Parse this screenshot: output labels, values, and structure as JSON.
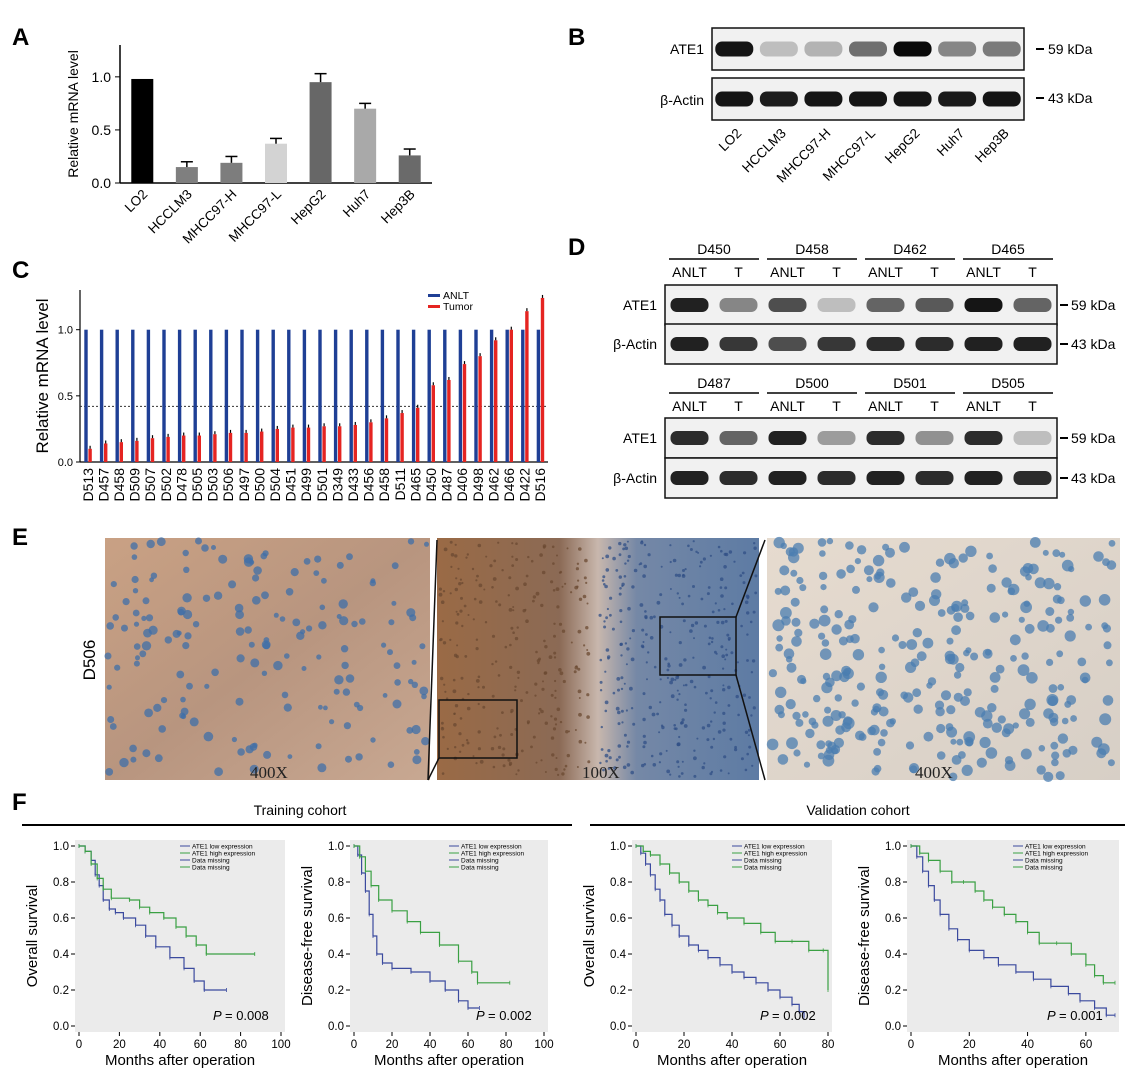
{
  "panel_letters": [
    "A",
    "B",
    "C",
    "D",
    "E",
    "F"
  ],
  "colors": {
    "black": "#000000",
    "anlt": "#1f3f95",
    "tumor": "#e52421",
    "km_low": "#3b4a9e",
    "km_high": "#3aa043",
    "plot_bg": "#ebebeb"
  },
  "chart_data": [
    {
      "id": "A",
      "type": "bar",
      "ylabel": "Relative mRNA level",
      "ylim": [
        0,
        1.3
      ],
      "ticks": [
        "0.0",
        "0.5",
        "1.0"
      ],
      "tick_values": [
        0,
        0.5,
        1.0
      ],
      "categories": [
        "LO2",
        "HCCLM3",
        "MHCC97-H",
        "MHCC97-L",
        "HepG2",
        "Huh7",
        "Hep3B"
      ],
      "values": [
        0.98,
        0.15,
        0.19,
        0.37,
        0.95,
        0.7,
        0.26
      ],
      "errors": [
        0,
        0.05,
        0.06,
        0.05,
        0.08,
        0.05,
        0.06
      ],
      "bar_colors": [
        "#000000",
        "#7f7f7f",
        "#7d7d7d",
        "#d3d3d3",
        "#676767",
        "#a9a9a9",
        "#6a6a6a"
      ]
    },
    {
      "id": "C",
      "type": "bar",
      "ylabel": "Relative mRNA level",
      "ylim": [
        0,
        1.3
      ],
      "ticks": [
        "0.0",
        "0.5",
        "1.0"
      ],
      "tick_values": [
        0,
        0.5,
        1.0
      ],
      "threshold": 0.42,
      "legend": [
        "ANLT",
        "Tumor"
      ],
      "categories": [
        "D513",
        "D457",
        "D458",
        "D509",
        "D507",
        "D502",
        "D478",
        "D505",
        "D503",
        "D506",
        "D497",
        "D500",
        "D504",
        "D451",
        "D499",
        "D501",
        "D349",
        "D433",
        "D456",
        "D458",
        "D511",
        "D465",
        "D450",
        "D487",
        "D406",
        "D498",
        "D462",
        "D466",
        "D422",
        "D516"
      ],
      "series": [
        {
          "name": "ANLT",
          "values": [
            1,
            1,
            1,
            1,
            1,
            1,
            1,
            1,
            1,
            1,
            1,
            1,
            1,
            1,
            1,
            1,
            1,
            1,
            1,
            1,
            1,
            1,
            1,
            1,
            1,
            1,
            1,
            1,
            1,
            1
          ]
        },
        {
          "name": "Tumor",
          "values": [
            0.1,
            0.14,
            0.15,
            0.16,
            0.18,
            0.19,
            0.2,
            0.2,
            0.21,
            0.22,
            0.22,
            0.23,
            0.25,
            0.26,
            0.26,
            0.27,
            0.27,
            0.28,
            0.3,
            0.33,
            0.37,
            0.41,
            0.58,
            0.62,
            0.74,
            0.8,
            0.92,
            1.0,
            1.14,
            1.24
          ]
        }
      ]
    }
  ],
  "blot_B": {
    "row_labels": [
      "ATE1",
      "β-Actin"
    ],
    "sizes": [
      "59 kDa",
      "43 kDa"
    ],
    "lanes": [
      "LO2",
      "HCCLM3",
      "MHCC97-H",
      "MHCC97-L",
      "HepG2",
      "Huh7",
      "Hep3B"
    ],
    "ate1_intensity": [
      0.95,
      0.2,
      0.25,
      0.55,
      1.0,
      0.45,
      0.5
    ],
    "actin_intensity": [
      0.95,
      0.92,
      0.95,
      0.95,
      0.95,
      0.93,
      0.95
    ]
  },
  "blot_D": {
    "row_labels": [
      "ATE1",
      "β-Actin"
    ],
    "sizes": [
      "59 kDa",
      "43 kDa"
    ],
    "lane_label_anlt": "ANLT",
    "lane_label_t": "T",
    "groups_top": [
      "D450",
      "D458",
      "D462",
      "D465"
    ],
    "groups_bottom": [
      "D487",
      "D500",
      "D501",
      "D505"
    ],
    "ate1_top": [
      0.9,
      0.45,
      0.7,
      0.2,
      0.6,
      0.65,
      0.95,
      0.6
    ],
    "ate1_bottom": [
      0.85,
      0.6,
      0.9,
      0.35,
      0.85,
      0.4,
      0.85,
      0.2
    ],
    "actin_top": [
      0.9,
      0.8,
      0.7,
      0.8,
      0.85,
      0.85,
      0.9,
      0.9
    ],
    "actin_bottom": [
      0.9,
      0.85,
      0.9,
      0.85,
      0.9,
      0.85,
      0.9,
      0.85
    ]
  },
  "ihc": {
    "sample_label": "D506",
    "magnifications": [
      "400X",
      "100X",
      "400X"
    ]
  },
  "km": {
    "cohort_titles": [
      "Training cohort",
      "Validation cohort"
    ],
    "xlabel": "Months after operation",
    "legend": [
      "ATE1 low expression",
      "ATE1 high expression",
      "Data missing",
      "Data missing"
    ],
    "yticks": [
      "0.0",
      "0.2",
      "0.4",
      "0.6",
      "0.8",
      "1.0"
    ],
    "plots": [
      {
        "ylabel": "Overall survival",
        "p_label": "P",
        "p_value": "= 0.008",
        "xticks": [
          "0",
          "20",
          "40",
          "60",
          "80",
          "100"
        ],
        "xmax": 100,
        "low": [
          [
            0,
            1
          ],
          [
            3,
            0.97
          ],
          [
            6,
            0.92
          ],
          [
            8,
            0.84
          ],
          [
            10,
            0.78
          ],
          [
            12,
            0.7
          ],
          [
            15,
            0.65
          ],
          [
            18,
            0.63
          ],
          [
            22,
            0.6
          ],
          [
            28,
            0.56
          ],
          [
            33,
            0.5
          ],
          [
            38,
            0.44
          ],
          [
            45,
            0.38
          ],
          [
            52,
            0.32
          ],
          [
            57,
            0.25
          ],
          [
            62,
            0.2
          ],
          [
            73,
            0.2
          ]
        ],
        "high": [
          [
            0,
            1
          ],
          [
            3,
            0.97
          ],
          [
            6,
            0.9
          ],
          [
            9,
            0.82
          ],
          [
            12,
            0.76
          ],
          [
            16,
            0.71
          ],
          [
            25,
            0.7
          ],
          [
            30,
            0.66
          ],
          [
            35,
            0.63
          ],
          [
            42,
            0.6
          ],
          [
            48,
            0.55
          ],
          [
            53,
            0.5
          ],
          [
            58,
            0.45
          ],
          [
            63,
            0.4
          ],
          [
            87,
            0.4
          ]
        ]
      },
      {
        "ylabel": "Disease-free survival",
        "p_label": "P",
        "p_value": "= 0.002",
        "xticks": [
          "0",
          "20",
          "40",
          "60",
          "80",
          "100"
        ],
        "xmax": 100,
        "low": [
          [
            0,
            1
          ],
          [
            2,
            0.95
          ],
          [
            4,
            0.85
          ],
          [
            6,
            0.75
          ],
          [
            8,
            0.62
          ],
          [
            10,
            0.5
          ],
          [
            12,
            0.4
          ],
          [
            15,
            0.35
          ],
          [
            20,
            0.32
          ],
          [
            30,
            0.3
          ],
          [
            40,
            0.25
          ],
          [
            48,
            0.2
          ],
          [
            55,
            0.14
          ],
          [
            60,
            0.1
          ],
          [
            66,
            0.1
          ]
        ],
        "high": [
          [
            0,
            1
          ],
          [
            3,
            0.94
          ],
          [
            6,
            0.86
          ],
          [
            9,
            0.78
          ],
          [
            13,
            0.7
          ],
          [
            20,
            0.64
          ],
          [
            28,
            0.58
          ],
          [
            35,
            0.52
          ],
          [
            45,
            0.45
          ],
          [
            55,
            0.36
          ],
          [
            62,
            0.3
          ],
          [
            65,
            0.24
          ],
          [
            82,
            0.24
          ]
        ]
      },
      {
        "ylabel": "Overall survival",
        "p_label": "P",
        "p_value": "= 0.002",
        "xticks": [
          "0",
          "20",
          "40",
          "60",
          "80"
        ],
        "xmax": 80,
        "low": [
          [
            0,
            1
          ],
          [
            2,
            0.96
          ],
          [
            4,
            0.9
          ],
          [
            6,
            0.84
          ],
          [
            8,
            0.76
          ],
          [
            10,
            0.7
          ],
          [
            12,
            0.62
          ],
          [
            15,
            0.56
          ],
          [
            18,
            0.5
          ],
          [
            22,
            0.45
          ],
          [
            26,
            0.42
          ],
          [
            30,
            0.38
          ],
          [
            35,
            0.34
          ],
          [
            40,
            0.3
          ],
          [
            45,
            0.27
          ],
          [
            50,
            0.24
          ],
          [
            55,
            0.2
          ],
          [
            60,
            0.16
          ],
          [
            65,
            0.12
          ],
          [
            68,
            0.08
          ],
          [
            70,
            0.05
          ]
        ],
        "high": [
          [
            0,
            1
          ],
          [
            3,
            0.97
          ],
          [
            6,
            0.95
          ],
          [
            10,
            0.9
          ],
          [
            14,
            0.85
          ],
          [
            18,
            0.8
          ],
          [
            22,
            0.75
          ],
          [
            26,
            0.7
          ],
          [
            30,
            0.67
          ],
          [
            34,
            0.63
          ],
          [
            38,
            0.6
          ],
          [
            45,
            0.57
          ],
          [
            52,
            0.52
          ],
          [
            58,
            0.47
          ],
          [
            65,
            0.47
          ],
          [
            72,
            0.42
          ],
          [
            78,
            0.42
          ],
          [
            80,
            0.2
          ]
        ]
      },
      {
        "ylabel": "Disease-free survival",
        "p_label": "P",
        "p_value": "= 0.001",
        "xticks": [
          "0",
          "20",
          "40",
          "60"
        ],
        "xmax": 70,
        "low": [
          [
            0,
            1
          ],
          [
            2,
            0.94
          ],
          [
            4,
            0.86
          ],
          [
            6,
            0.78
          ],
          [
            8,
            0.7
          ],
          [
            10,
            0.62
          ],
          [
            13,
            0.54
          ],
          [
            16,
            0.48
          ],
          [
            20,
            0.42
          ],
          [
            25,
            0.38
          ],
          [
            30,
            0.34
          ],
          [
            36,
            0.3
          ],
          [
            42,
            0.26
          ],
          [
            48,
            0.22
          ],
          [
            54,
            0.18
          ],
          [
            58,
            0.14
          ],
          [
            63,
            0.1
          ],
          [
            67,
            0.06
          ],
          [
            70,
            0.06
          ]
        ],
        "high": [
          [
            0,
            1
          ],
          [
            3,
            0.96
          ],
          [
            6,
            0.92
          ],
          [
            10,
            0.86
          ],
          [
            14,
            0.8
          ],
          [
            18,
            0.8
          ],
          [
            22,
            0.75
          ],
          [
            25,
            0.7
          ],
          [
            28,
            0.66
          ],
          [
            32,
            0.62
          ],
          [
            36,
            0.58
          ],
          [
            40,
            0.52
          ],
          [
            44,
            0.46
          ],
          [
            50,
            0.46
          ],
          [
            55,
            0.4
          ],
          [
            60,
            0.34
          ],
          [
            63,
            0.28
          ],
          [
            66,
            0.24
          ],
          [
            70,
            0.24
          ]
        ]
      }
    ]
  }
}
